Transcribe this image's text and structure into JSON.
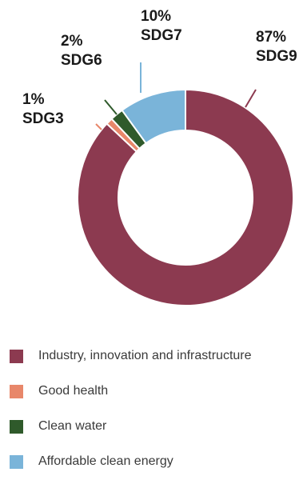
{
  "chart_data": {
    "type": "pie",
    "donut": true,
    "slices": [
      {
        "label": "SDG9",
        "percent": 87,
        "value_label": "87%",
        "legend": "Industry, innovation and infrastructure",
        "color": "#8c3a50"
      },
      {
        "label": "SDG3",
        "percent": 1,
        "value_label": "1%",
        "legend": "Good health",
        "color": "#e8876a"
      },
      {
        "label": "SDG6",
        "percent": 2,
        "value_label": "2%",
        "legend": "Clean water",
        "color": "#2f5a2b"
      },
      {
        "label": "SDG7",
        "percent": 10,
        "value_label": "10%",
        "legend": "Affordable clean energy",
        "color": "#7ab4d9"
      }
    ],
    "legend_position": "bottom"
  }
}
